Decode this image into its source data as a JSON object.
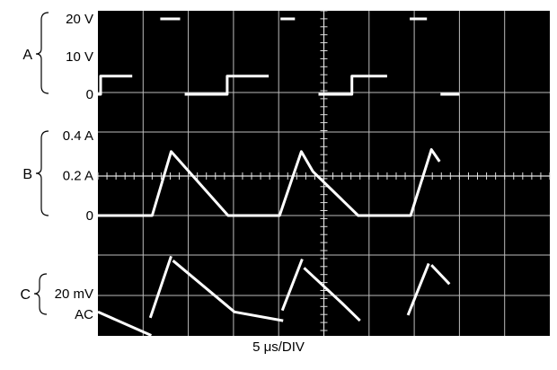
{
  "chart_data": {
    "type": "line",
    "title": "",
    "xlabel": "5 μs/DIV",
    "time_per_division_us": 5,
    "divisions": {
      "x": 10,
      "y": 8
    },
    "grid": true,
    "background": "#000000",
    "trace_color": "#ffffff",
    "channels": [
      {
        "name": "A",
        "ticks": [
          {
            "label": "20 V",
            "value": 20
          },
          {
            "label": "10 V",
            "value": 10
          },
          {
            "label": "0",
            "value": 0
          }
        ],
        "segments": [
          [
            [
              6.9,
              20
            ],
            [
              9.1,
              20
            ]
          ],
          [
            [
              0,
              0
            ],
            [
              0.3,
              0
            ],
            [
              0.3,
              4.8
            ],
            [
              3.8,
              4.8
            ]
          ],
          [
            [
              9.6,
              0
            ],
            [
              14.3,
              0
            ],
            [
              14.3,
              4.8
            ],
            [
              18.9,
              4.8
            ]
          ],
          [
            [
              20.2,
              20
            ],
            [
              21.8,
              20
            ]
          ],
          [
            [
              24.4,
              0
            ],
            [
              28.1,
              0
            ],
            [
              28.1,
              4.8
            ],
            [
              32,
              4.8
            ]
          ],
          [
            [
              34.5,
              20
            ],
            [
              36.4,
              20
            ]
          ],
          [
            [
              37.9,
              0
            ],
            [
              40,
              0
            ]
          ]
        ],
        "ylim": [
          0,
          20
        ]
      },
      {
        "name": "B",
        "ticks": [
          {
            "label": "0.4 A",
            "value": 0.4
          },
          {
            "label": "0.2 A",
            "value": 0.2
          },
          {
            "label": "0",
            "value": 0
          }
        ],
        "segments": [
          [
            [
              0,
              0
            ],
            [
              6,
              0
            ],
            [
              8.1,
              0.32
            ],
            [
              14.4,
              0
            ],
            [
              20.1,
              0
            ],
            [
              22.5,
              0.32
            ],
            [
              23.8,
              0.22
            ],
            [
              28.8,
              0
            ],
            [
              34.6,
              0
            ],
            [
              36.9,
              0.33
            ],
            [
              37.8,
              0.27
            ]
          ]
        ],
        "ylim": [
          0,
          0.4
        ]
      },
      {
        "name": "C",
        "ticks": [
          {
            "label": "20 mV",
            "value": 20
          },
          {
            "label": "AC",
            "value": 0
          }
        ],
        "segments": [
          [
            [
              0,
              0
            ],
            [
              5.9,
              -16
            ]
          ],
          [
            [
              5.8,
              -4
            ],
            [
              8.1,
              38
            ]
          ],
          [
            [
              8.3,
              35
            ],
            [
              15.1,
              0
            ],
            [
              20.5,
              -6
            ]
          ],
          [
            [
              20.4,
              1
            ],
            [
              22.6,
              36
            ]
          ],
          [
            [
              22.8,
              30
            ],
            [
              27,
              6
            ],
            [
              29,
              -6
            ]
          ],
          [
            [
              34.3,
              -2.2
            ],
            [
              36.6,
              33
            ]
          ],
          [
            [
              36.9,
              32
            ],
            [
              38.9,
              19
            ]
          ]
        ],
        "ylim": [
          -20,
          40
        ]
      }
    ]
  }
}
